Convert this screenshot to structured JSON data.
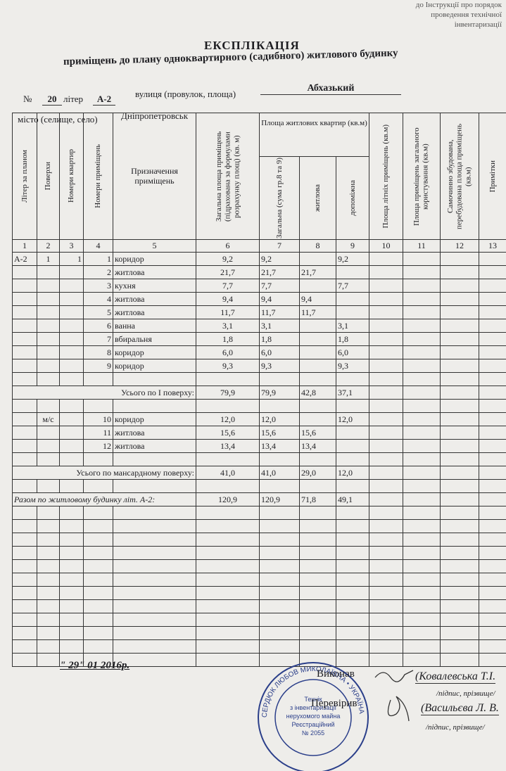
{
  "corner_note": [
    "до Інструкції про порядок",
    "проведення технічної",
    "інвентаризації"
  ],
  "header": {
    "title": "ЕКСПЛІКАЦІЯ",
    "subtitle": "приміщень до плану одноквартирного (садибного) житлового будинку",
    "number_label": "№",
    "number": "20",
    "letter_label": "літер",
    "letter": "А-2",
    "street_label": "вулиця (провулок, площа)",
    "street": "Абхазький",
    "city_label": "місто (селище, село)",
    "city": "Дніпропетровськ"
  },
  "table": {
    "headers": [
      "Літер за планом",
      "Поверхи",
      "Номери квартир",
      "Номери приміщень",
      "Призначення приміщень",
      "Загальна площа приміщень (підрахована за формулами розрахунку площ) (кв. м)",
      "Загальна (сума гр.8 та 9)",
      "житлова",
      "допоміжна",
      "Площа літніх приміщень (кв.м)",
      "Площа приміщень загального користування (кв.м)",
      "Самочинно збудована, перебудована площа приміщень (кв.м)",
      "Примітки"
    ],
    "group_header": "Площа житлових квартир (кв.м)",
    "column_numbers": [
      "1",
      "2",
      "3",
      "4",
      "5",
      "6",
      "7",
      "8",
      "9",
      "10",
      "11",
      "12",
      "13"
    ],
    "rows": [
      {
        "plan_letter": "А-2",
        "floor": "1",
        "apartment": "1",
        "room": "1",
        "purpose": "коридор",
        "total": "9,2",
        "living_total": "9,2",
        "auxiliary": "9,2"
      },
      {
        "room": "2",
        "purpose": "житлова",
        "total": "21,7",
        "living_total": "21,7",
        "living": "21,7"
      },
      {
        "room": "3",
        "purpose": "кухня",
        "total": "7,7",
        "living_total": "7,7",
        "auxiliary": "7,7"
      },
      {
        "room": "4",
        "purpose": "житлова",
        "total": "9,4",
        "living_total": "9,4",
        "living": "9,4"
      },
      {
        "room": "5",
        "purpose": "житлова",
        "total": "11,7",
        "living_total": "11,7",
        "living": "11,7"
      },
      {
        "room": "6",
        "purpose": "ванна",
        "total": "3,1",
        "living_total": "3,1",
        "auxiliary": "3,1"
      },
      {
        "room": "7",
        "purpose": "вбиральня",
        "total": "1,8",
        "living_total": "1,8",
        "auxiliary": "1,8"
      },
      {
        "room": "8",
        "purpose": "коридор",
        "total": "6,0",
        "living_total": "6,0",
        "auxiliary": "6,0"
      },
      {
        "room": "9",
        "purpose": "коридор",
        "total": "9,3",
        "living_total": "9,3",
        "auxiliary": "9,3"
      },
      {
        "summary": "Усього по І поверху:",
        "total": "79,9",
        "living_total": "79,9",
        "living": "42,8",
        "auxiliary": "37,1"
      },
      {
        "floor": "м/с",
        "room": "10",
        "purpose": "коридор",
        "total": "12,0",
        "living_total": "12,0",
        "auxiliary": "12,0"
      },
      {
        "room": "11",
        "purpose": "житлова",
        "total": "15,6",
        "living_total": "15,6",
        "living": "15,6"
      },
      {
        "room": "12",
        "purpose": "житлова",
        "total": "13,4",
        "living_total": "13,4",
        "living": "13,4"
      },
      {
        "summary": "Усього по мансардному поверху:",
        "total": "41,0",
        "living_total": "41,0",
        "living": "29,0",
        "auxiliary": "12,0"
      },
      {
        "summary": "Разом по житловому будинку літ. А-2:",
        "total": "120,9",
        "living_total": "120,9",
        "living": "71,8",
        "auxiliary": "49,1"
      }
    ]
  },
  "footer": {
    "date": "\" 29\" 01  2016р.",
    "executed_label": "Виконав",
    "executed_name": "(Ковалевська Т.І.",
    "executed_caption": "/підпис, прізвище/",
    "checked_label": "Перевірив",
    "checked_name": "(Васильєва Л. В.",
    "checked_caption": "/підпис, прізвище/"
  },
  "stamp": {
    "ring": "СЕРДЮК ЛЮБОВ МИКОЛАЇВНА • УКРАЇНА",
    "lines": [
      "Технік",
      "з інвентаризації",
      "нерухомого майна",
      "Реєстраційний",
      "№ 2055"
    ]
  }
}
